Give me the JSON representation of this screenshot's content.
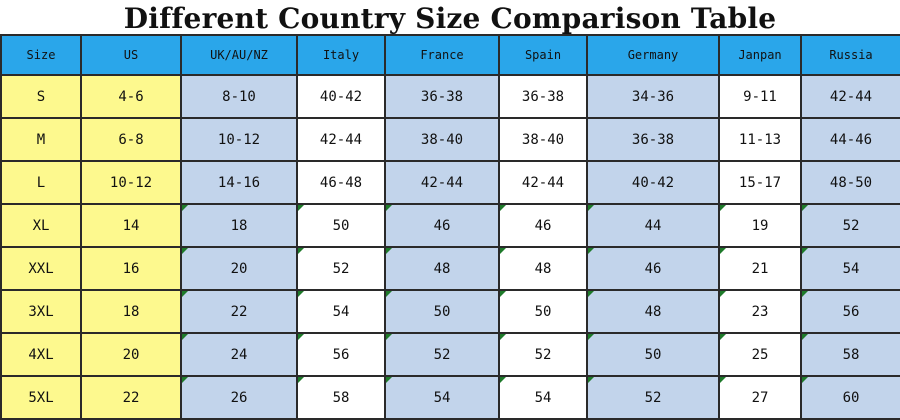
{
  "title": "Different Country Size Comparison Table",
  "headers": [
    "Size",
    "US",
    "UK/AU/NZ",
    "Italy",
    "France",
    "Spain",
    "Germany",
    "Janpan",
    "Russia"
  ],
  "rows": [
    [
      "S",
      "4-6",
      "8-10",
      "40-42",
      "36-38",
      "36-38",
      "34-36",
      "9-11",
      "42-44"
    ],
    [
      "M",
      "6-8",
      "10-12",
      "42-44",
      "38-40",
      "38-40",
      "36-38",
      "11-13",
      "44-46"
    ],
    [
      "L",
      "10-12",
      "14-16",
      "46-48",
      "42-44",
      "42-44",
      "40-42",
      "15-17",
      "48-50"
    ],
    [
      "XL",
      "14",
      "18",
      "50",
      "46",
      "46",
      "44",
      "19",
      "52"
    ],
    [
      "XXL",
      "16",
      "20",
      "52",
      "48",
      "48",
      "46",
      "21",
      "54"
    ],
    [
      "3XL",
      "18",
      "22",
      "54",
      "50",
      "50",
      "48",
      "23",
      "56"
    ],
    [
      "4XL",
      "20",
      "24",
      "56",
      "52",
      "52",
      "50",
      "25",
      "58"
    ],
    [
      "5XL",
      "22",
      "26",
      "58",
      "54",
      "54",
      "52",
      "27",
      "60"
    ]
  ],
  "colors": {
    "header_bg": "#2aa6ea",
    "yellow_columns": "#fdf98e",
    "blue_columns": "#c2d4eb",
    "white_columns": "#ffffff",
    "corner_marker": "#1e7a2a"
  }
}
